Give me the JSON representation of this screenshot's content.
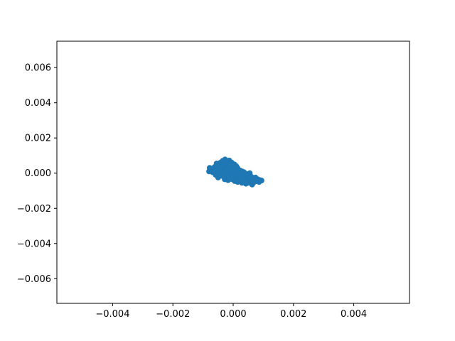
{
  "chart_data": {
    "type": "scatter",
    "title": "",
    "xlabel": "",
    "ylabel": "",
    "xlim": [
      -0.00585,
      0.00585
    ],
    "ylim": [
      -0.0074,
      0.0075
    ],
    "grid": false,
    "marker_color": "#1f77b4",
    "x_ticks": [
      {
        "value": -0.004,
        "label": "−0.004"
      },
      {
        "value": -0.002,
        "label": "−0.002"
      },
      {
        "value": 0.0,
        "label": "0.000"
      },
      {
        "value": 0.002,
        "label": "0.002"
      },
      {
        "value": 0.004,
        "label": "0.004"
      }
    ],
    "y_ticks": [
      {
        "value": 0.006,
        "label": "0.006"
      },
      {
        "value": 0.004,
        "label": "0.004"
      },
      {
        "value": 0.002,
        "label": "0.002"
      },
      {
        "value": 0.0,
        "label": "0.000"
      },
      {
        "value": -0.002,
        "label": "−0.002"
      },
      {
        "value": -0.004,
        "label": "−0.004"
      },
      {
        "value": -0.006,
        "label": "−0.006"
      }
    ],
    "points": [
      [
        -0.00078,
        0.0003
      ],
      [
        -0.0008,
        0.0001
      ],
      [
        -0.00072,
        0.0002
      ],
      [
        -0.00068,
        5e-05
      ],
      [
        -0.00062,
        0.00035
      ],
      [
        -0.00058,
        -0.0001
      ],
      [
        -0.00055,
        0.00055
      ],
      [
        -0.00052,
        0.00015
      ],
      [
        -0.0005,
        -0.00025
      ],
      [
        -0.00048,
        0.00045
      ],
      [
        -0.00045,
        0.0
      ],
      [
        -0.00042,
        0.0006
      ],
      [
        -0.0004,
        0.0002
      ],
      [
        -0.00038,
        -0.00015
      ],
      [
        -0.00035,
        0.0007
      ],
      [
        -0.00033,
        0.00035
      ],
      [
        -0.0003,
        5e-05
      ],
      [
        -0.00028,
        -0.00035
      ],
      [
        -0.00027,
        0.00078
      ],
      [
        -0.00025,
        0.0005
      ],
      [
        -0.00023,
        0.0002
      ],
      [
        -0.00022,
        -0.0001
      ],
      [
        -0.0002,
        0.00065
      ],
      [
        -0.00018,
        0.0004
      ],
      [
        -0.00017,
        -0.0004
      ],
      [
        -0.00015,
        0.0001
      ],
      [
        -0.00013,
        0.00072
      ],
      [
        -0.00012,
        -0.0002
      ],
      [
        -0.0001,
        0.00055
      ],
      [
        -8e-05,
        0.00025
      ],
      [
        -6e-05,
        -5e-05
      ],
      [
        -5e-05,
        0.0006
      ],
      [
        -3e-05,
        -0.00035
      ],
      [
        -2e-05,
        0.0003
      ],
      [
        0.0,
        0.0
      ],
      [
        0.0,
        0.00045
      ],
      [
        2e-05,
        -0.00025
      ],
      [
        3e-05,
        0.00015
      ],
      [
        5e-05,
        -0.00045
      ],
      [
        6e-05,
        0.00035
      ],
      [
        8e-05,
        -0.0001
      ],
      [
        0.0001,
        0.0004
      ],
      [
        0.00011,
        -0.0003
      ],
      [
        0.00013,
        0.0001
      ],
      [
        0.00015,
        -0.0005
      ],
      [
        0.00016,
        0.0002
      ],
      [
        0.00018,
        -0.00015
      ],
      [
        0.0002,
        0.0
      ],
      [
        0.00022,
        -0.0004
      ],
      [
        0.00023,
        0.00015
      ],
      [
        0.00025,
        -0.00025
      ],
      [
        0.00027,
        -5e-05
      ],
      [
        0.00029,
        -0.00055
      ],
      [
        0.0003,
        0.0001
      ],
      [
        0.00032,
        -0.00035
      ],
      [
        0.00034,
        -0.00015
      ],
      [
        0.00036,
        5e-05
      ],
      [
        0.00038,
        -0.00045
      ],
      [
        0.0004,
        -0.00025
      ],
      [
        0.00042,
        -0.0006
      ],
      [
        0.00044,
        -5e-05
      ],
      [
        0.00046,
        -0.00035
      ],
      [
        0.00048,
        -0.00015
      ],
      [
        0.0005,
        -0.00055
      ],
      [
        0.00052,
        -0.0003
      ],
      [
        0.00055,
        0.0
      ],
      [
        0.00057,
        -0.00045
      ],
      [
        0.0006,
        -0.0002
      ],
      [
        0.00063,
        -0.00065
      ],
      [
        0.00066,
        -0.00035
      ],
      [
        0.0007,
        -0.0005
      ],
      [
        0.00074,
        -0.00025
      ],
      [
        0.00078,
        -0.00045
      ],
      [
        0.00082,
        -0.00035
      ],
      [
        0.00086,
        -0.0005
      ],
      [
        0.0009,
        -0.0004
      ],
      [
        0.00094,
        -0.00042
      ],
      [
        -0.00065,
        0.00025
      ],
      [
        -0.00046,
        0.00025
      ],
      [
        -0.00036,
        0.0005
      ],
      [
        -0.00021,
        0.0003
      ],
      [
        -0.00011,
        0.00045
      ],
      [
        4e-05,
        0.0005
      ],
      [
        0.00014,
        0.0003
      ],
      [
        0.00024,
        5e-05
      ],
      [
        0.00035,
        -5e-05
      ],
      [
        0.00047,
        -0.00045
      ],
      [
        0.00058,
        -0.0003
      ],
      [
        0.00068,
        -0.0004
      ],
      [
        -0.0006,
        0.0001
      ],
      [
        -0.00044,
        0.0001
      ],
      [
        -0.00026,
        -0.0002
      ],
      [
        -9e-05,
        -0.0003
      ],
      [
        7e-05,
        -0.0004
      ],
      [
        0.00021,
        -0.0003
      ],
      [
        0.00033,
        -0.0005
      ],
      [
        0.00045,
        -0.00052
      ]
    ]
  }
}
